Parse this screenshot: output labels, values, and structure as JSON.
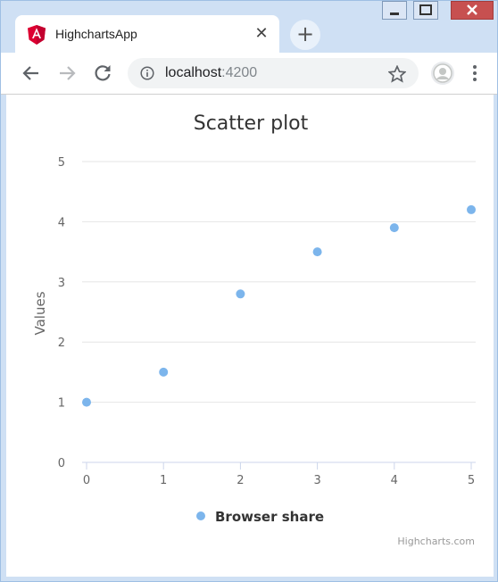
{
  "browser": {
    "tab_title": "HighchartsApp",
    "tab_icon": "angular-logo-icon",
    "close_glyph": "✕",
    "new_tab_glyph": "+",
    "url_host": "localhost",
    "url_port": ":4200"
  },
  "colors": {
    "angular_red": "#dd0031",
    "point_color": "#7cb5ec",
    "grid_color": "#e6e6e6",
    "text_color": "#333333",
    "axis_label_color": "#666666",
    "frame_blue": "#cfe0f4"
  },
  "chart_data": {
    "type": "scatter",
    "title": "Scatter plot",
    "xlabel": "",
    "ylabel": "Values",
    "xlim": [
      0,
      5
    ],
    "ylim": [
      0,
      5
    ],
    "x_ticks": [
      0,
      1,
      2,
      3,
      4,
      5
    ],
    "y_ticks": [
      0,
      1,
      2,
      3,
      4,
      5
    ],
    "grid": true,
    "legend_position": "bottom-center",
    "series": [
      {
        "name": "Browser share",
        "points": [
          {
            "x": 0,
            "y": 1
          },
          {
            "x": 1,
            "y": 1.5
          },
          {
            "x": 2,
            "y": 2.8
          },
          {
            "x": 3,
            "y": 3.5
          },
          {
            "x": 4,
            "y": 3.9
          },
          {
            "x": 5,
            "y": 4.2
          }
        ]
      }
    ],
    "credit": "Highcharts.com"
  }
}
